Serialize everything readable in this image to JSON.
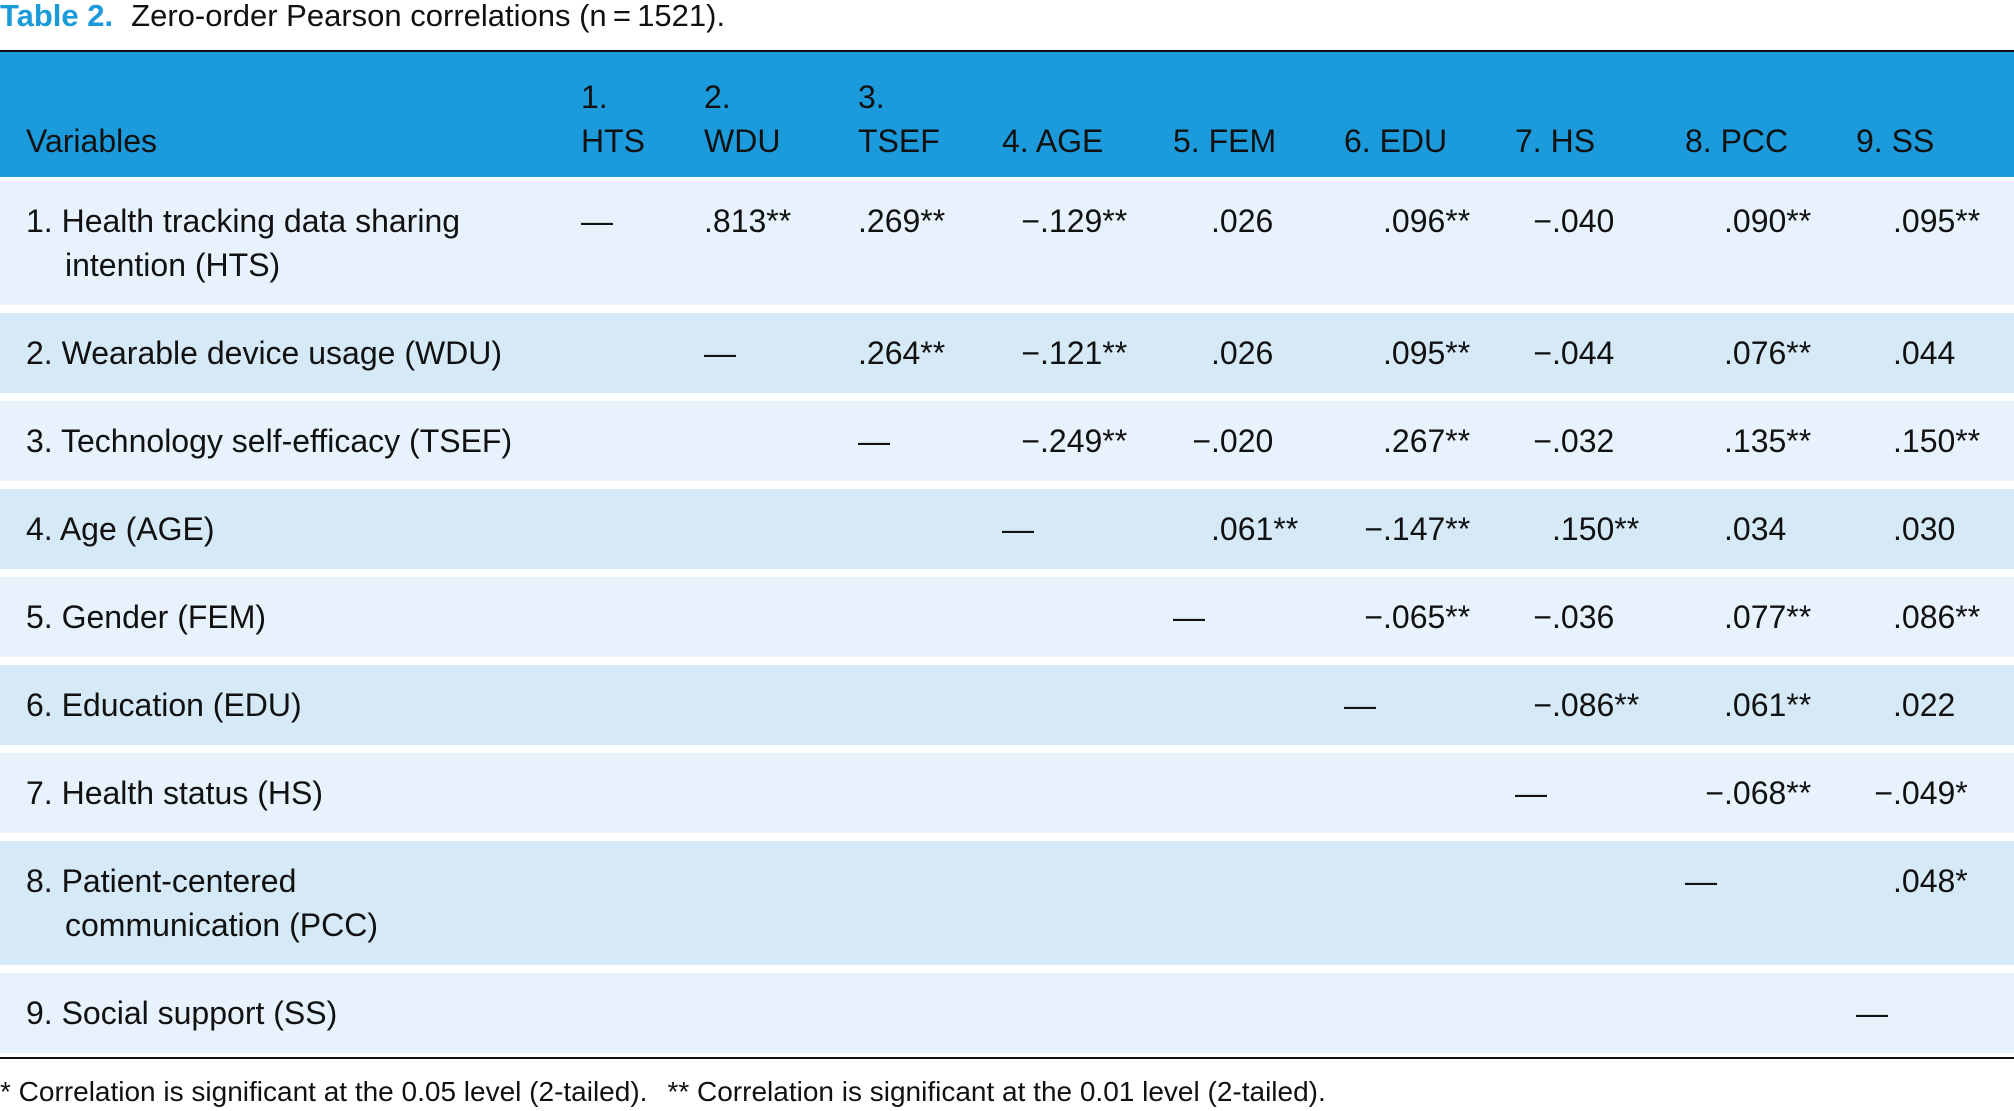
{
  "caption": {
    "label": "Table 2.",
    "text": "Zero-order Pearson correlations (n = 1521)."
  },
  "table": {
    "header": [
      "Variables",
      "1.\nHTS",
      "2.\nWDU",
      "3.\nTSEF",
      "4. AGE",
      "5. FEM",
      "6. EDU",
      "7. HS",
      "8. PCC",
      "9. SS"
    ],
    "rows": [
      {
        "label": "1. Health tracking data sharing\nintention (HTS)",
        "cells": [
          "—",
          ".813**",
          ".269**",
          "−.129**",
          ".026",
          ".096**",
          "−.040",
          ".090**",
          ".095**"
        ]
      },
      {
        "label": "2. Wearable device usage (WDU)",
        "cells": [
          "—",
          ".264**",
          "−.121**",
          ".026",
          ".095**",
          "−.044",
          ".076**",
          ".044"
        ]
      },
      {
        "label": "3. Technology self-efficacy (TSEF)",
        "cells": [
          "—",
          "−.249**",
          "−.020",
          ".267**",
          "−.032",
          ".135**",
          ".150**"
        ]
      },
      {
        "label": "4. Age (AGE)",
        "cells": [
          "—",
          ".061**",
          "−.147**",
          ".150**",
          ".034",
          ".030"
        ]
      },
      {
        "label": "5. Gender (FEM)",
        "cells": [
          "—",
          "−.065**",
          "−.036",
          ".077**",
          ".086**"
        ]
      },
      {
        "label": "6. Education (EDU)",
        "cells": [
          "—",
          "−.086**",
          ".061**",
          ".022"
        ]
      },
      {
        "label": "7. Health status (HS)",
        "cells": [
          "—",
          "−.068**",
          "−.049*"
        ]
      },
      {
        "label": "8. Patient-centered\ncommunication (PCC)",
        "cells": [
          "—",
          ".048*"
        ]
      },
      {
        "label": "9. Social support (SS)",
        "cells": [
          "—"
        ]
      }
    ]
  },
  "footnotes": [
    "* Correlation is significant at the 0.05 level (2-tailed).",
    "** Correlation is significant at the 0.01 level (2-tailed)."
  ]
}
